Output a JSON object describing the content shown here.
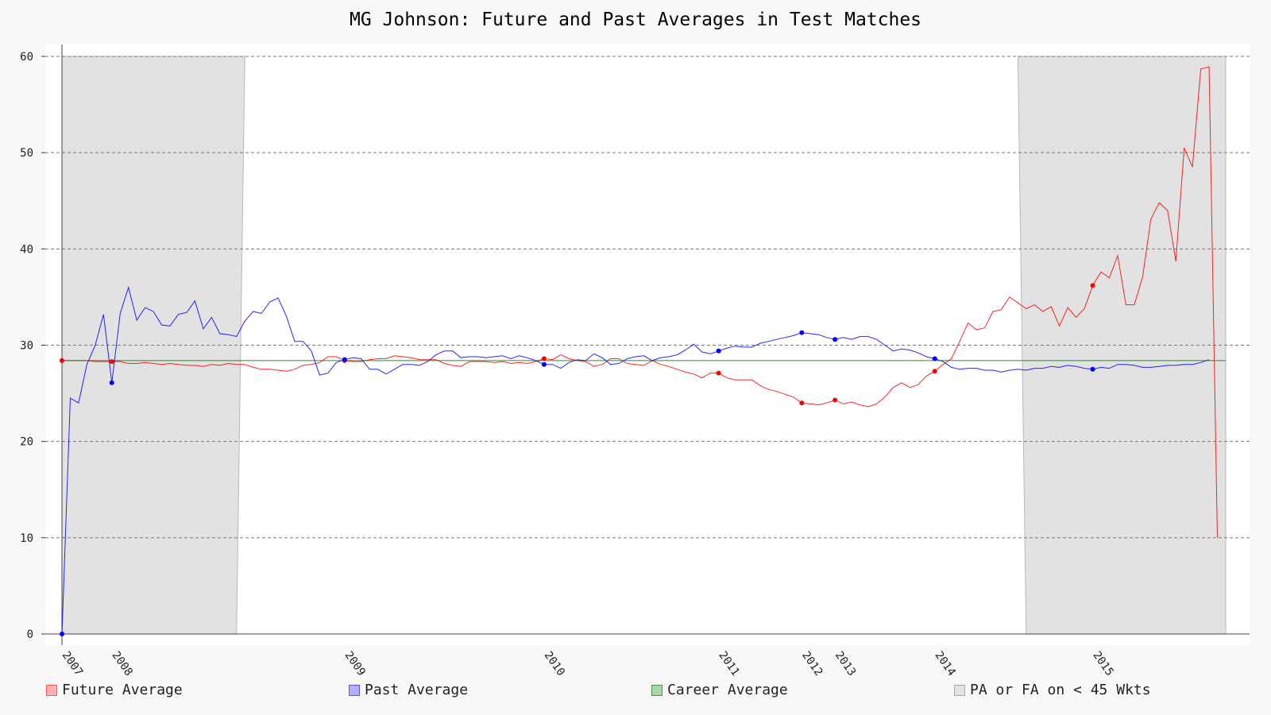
{
  "chart_data": {
    "type": "line",
    "title": "MG Johnson: Future and Past Averages in Test Matches",
    "xlabel": "",
    "ylabel": "",
    "ylim": [
      0,
      60
    ],
    "yticks": [
      0,
      10,
      20,
      30,
      40,
      50,
      60
    ],
    "grid": true,
    "legend_position": "bottom",
    "x_tick_labels": [
      {
        "index": 0,
        "label": "2007"
      },
      {
        "index": 6,
        "label": "2008"
      },
      {
        "index": 34,
        "label": "2009"
      },
      {
        "index": 58,
        "label": "2010"
      },
      {
        "index": 79,
        "label": "2011"
      },
      {
        "index": 89,
        "label": "2012"
      },
      {
        "index": 93,
        "label": "2013"
      },
      {
        "index": 105,
        "label": "2014"
      },
      {
        "index": 124,
        "label": "2015"
      }
    ],
    "num_matches": 141,
    "shaded_regions": [
      {
        "name": "PA or FA on < 45 Wkts",
        "start_top": 0,
        "start_bottom": 0,
        "end_top": 22,
        "end_bottom": 21
      },
      {
        "name": "PA or FA on < 45 Wkts",
        "start_top": 115,
        "start_bottom": 116,
        "end_top": 140,
        "end_bottom": 140
      }
    ],
    "series": [
      {
        "name": "Future Average",
        "color": "#ff0000",
        "values": [
          28.4,
          28.4,
          28.4,
          28.4,
          28.3,
          28.3,
          28.3,
          28.3,
          28.1,
          28.1,
          28.2,
          28.1,
          28.0,
          28.1,
          28.0,
          27.9,
          27.9,
          27.8,
          28.0,
          27.9,
          28.1,
          28.0,
          28.0,
          27.7,
          27.5,
          27.5,
          27.4,
          27.3,
          27.5,
          27.9,
          28.0,
          28.2,
          28.8,
          28.8,
          28.4,
          28.3,
          28.3,
          28.5,
          28.6,
          28.6,
          28.9,
          28.8,
          28.7,
          28.5,
          28.5,
          28.5,
          28.1,
          27.9,
          27.8,
          28.3,
          28.3,
          28.3,
          28.2,
          28.3,
          28.1,
          28.2,
          28.1,
          28.3,
          28.6,
          28.5,
          29.0,
          28.6,
          28.4,
          28.3,
          27.8,
          28.0,
          28.6,
          28.6,
          28.1,
          28.0,
          27.9,
          28.4,
          28.0,
          27.8,
          27.5,
          27.2,
          27.0,
          26.6,
          27.1,
          27.1,
          26.6,
          26.4,
          26.4,
          26.4,
          25.8,
          25.4,
          25.2,
          24.9,
          24.6,
          24.0,
          23.9,
          23.8,
          24.0,
          24.3,
          23.9,
          24.1,
          23.8,
          23.6,
          23.9,
          24.6,
          25.6,
          26.1,
          25.6,
          25.9,
          26.8,
          27.3,
          28.0,
          28.6,
          30.4,
          32.3,
          31.6,
          31.8,
          33.5,
          33.7,
          35.0,
          34.4,
          33.8,
          34.2,
          33.5,
          34.0,
          32.0,
          33.9,
          32.9,
          33.8,
          36.2,
          37.6,
          37.0,
          39.3,
          34.2,
          34.2,
          37.1,
          43.1,
          44.8,
          44.0,
          38.7,
          50.5,
          48.5,
          58.7,
          58.9,
          10.0
        ],
        "highlight_indices": [
          0,
          6,
          34,
          58,
          79,
          89,
          93,
          105,
          124
        ]
      },
      {
        "name": "Past Average",
        "color": "#0000ff",
        "values": [
          0.0,
          24.5,
          24.0,
          28.0,
          30.0,
          33.2,
          26.1,
          33.3,
          36.0,
          32.6,
          33.9,
          33.5,
          32.1,
          32.0,
          33.2,
          33.4,
          34.6,
          31.7,
          32.9,
          31.2,
          31.1,
          30.9,
          32.5,
          33.5,
          33.3,
          34.5,
          34.9,
          33.0,
          30.4,
          30.4,
          29.4,
          26.9,
          27.1,
          28.2,
          28.5,
          28.7,
          28.6,
          27.5,
          27.5,
          27.0,
          27.5,
          28.0,
          28.0,
          27.9,
          28.3,
          29.0,
          29.4,
          29.4,
          28.7,
          28.8,
          28.8,
          28.7,
          28.8,
          28.9,
          28.6,
          28.9,
          28.7,
          28.4,
          28.0,
          28.0,
          27.6,
          28.2,
          28.5,
          28.4,
          29.1,
          28.7,
          28.0,
          28.1,
          28.6,
          28.8,
          28.9,
          28.4,
          28.7,
          28.8,
          29.0,
          29.5,
          30.1,
          29.3,
          29.1,
          29.4,
          29.7,
          29.9,
          29.8,
          29.8,
          30.2,
          30.4,
          30.6,
          30.8,
          31.0,
          31.3,
          31.2,
          31.1,
          30.8,
          30.6,
          30.8,
          30.6,
          30.9,
          30.9,
          30.6,
          30.0,
          29.4,
          29.6,
          29.5,
          29.2,
          28.8,
          28.6,
          28.3,
          27.7,
          27.5,
          27.6,
          27.6,
          27.4,
          27.4,
          27.2,
          27.4,
          27.5,
          27.4,
          27.6,
          27.6,
          27.8,
          27.7,
          27.9,
          27.8,
          27.6,
          27.5,
          27.7,
          27.6,
          28.0,
          28.0,
          27.9,
          27.7,
          27.7,
          27.8,
          27.9,
          27.9,
          28.0,
          28.0,
          28.2,
          28.5
        ],
        "highlight_indices": [
          0,
          6,
          34,
          58,
          79,
          89,
          93,
          105,
          124
        ]
      },
      {
        "name": "Career Average",
        "color": "#008000",
        "values": [
          28.4,
          28.4
        ]
      }
    ]
  },
  "legend": {
    "future_label": "Future Average",
    "past_label": "Past Average",
    "career_label": "Career Average",
    "shade_label": "PA or FA on < 45 Wkts"
  },
  "colors": {
    "future": "#ff0000",
    "past": "#0000ff",
    "career": "#008000",
    "shade": "#e2e2e2"
  }
}
